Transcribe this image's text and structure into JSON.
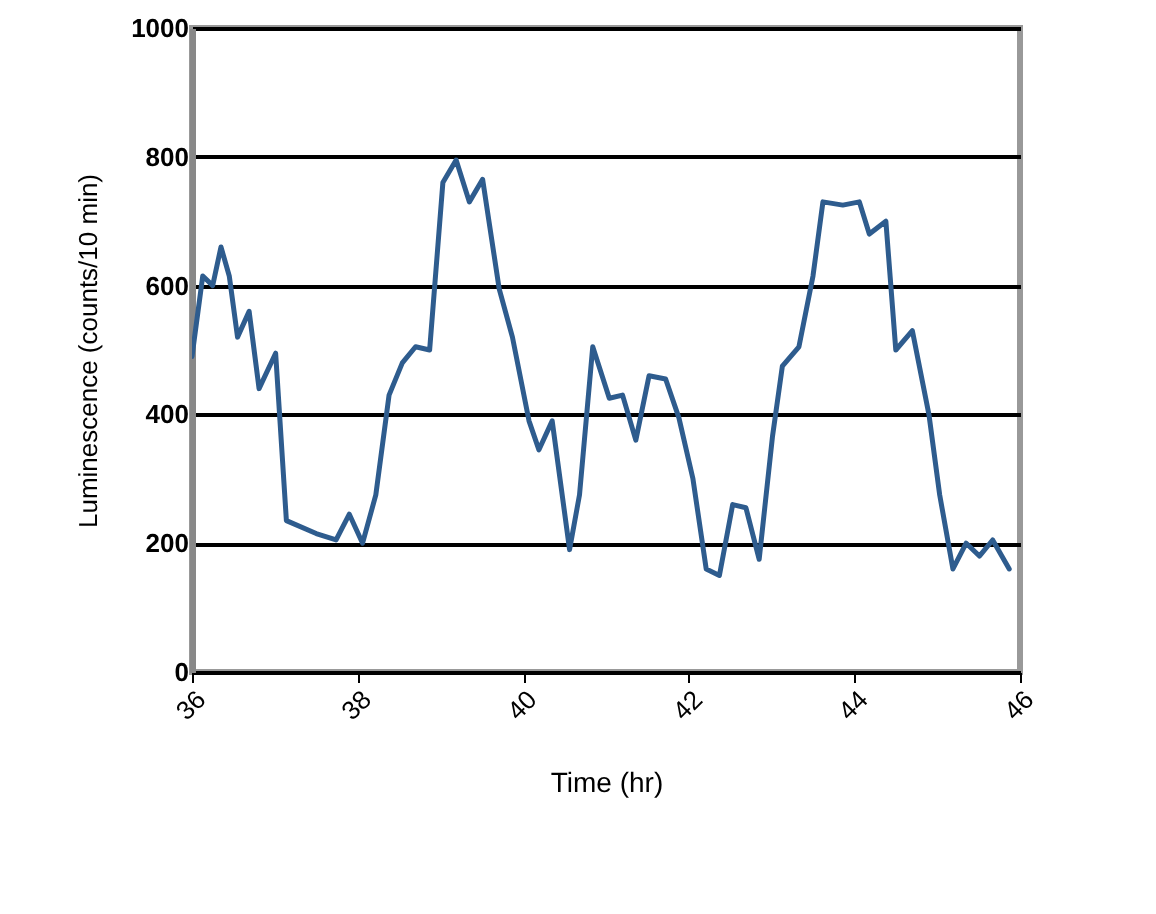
{
  "chart_data": {
    "type": "line",
    "xlabel": "Time (hr)",
    "ylabel": "Luminescence (counts/10 min)",
    "x": [
      36.0,
      36.13,
      36.25,
      36.35,
      36.45,
      36.55,
      36.69,
      36.81,
      37.01,
      37.14,
      37.5,
      37.74,
      37.9,
      38.06,
      38.22,
      38.38,
      38.54,
      38.7,
      38.87,
      39.03,
      39.19,
      39.35,
      39.51,
      39.71,
      39.87,
      40.07,
      40.19,
      40.35,
      40.56,
      40.68,
      40.84,
      41.04,
      41.2,
      41.36,
      41.52,
      41.72,
      41.88,
      42.05,
      42.21,
      42.37,
      42.53,
      42.69,
      42.85,
      43.01,
      43.13,
      43.33,
      43.5,
      43.62,
      43.86,
      44.06,
      44.18,
      44.38,
      44.5,
      44.7,
      44.9,
      45.03,
      45.19,
      45.35,
      45.51,
      45.67,
      45.87
    ],
    "series": [
      {
        "color": "#2e5c8e",
        "values": [
          490,
          615,
          600,
          660,
          615,
          520,
          560,
          440,
          495,
          235,
          215,
          205,
          245,
          200,
          275,
          430,
          480,
          505,
          500,
          760,
          795,
          730,
          765,
          595,
          520,
          390,
          345,
          390,
          190,
          275,
          505,
          425,
          430,
          360,
          460,
          455,
          395,
          300,
          160,
          150,
          260,
          255,
          175,
          365,
          475,
          505,
          615,
          730,
          725,
          730,
          680,
          700,
          500,
          530,
          400,
          275,
          160,
          200,
          180,
          205,
          160
        ]
      }
    ],
    "xlim": [
      36,
      46
    ],
    "xticks": [
      36,
      38,
      40,
      42,
      44,
      46
    ],
    "ylim": [
      0,
      1000
    ],
    "yticks": [
      0,
      200,
      400,
      600,
      800,
      1000
    ],
    "grid": "y",
    "line_style": "solid"
  }
}
